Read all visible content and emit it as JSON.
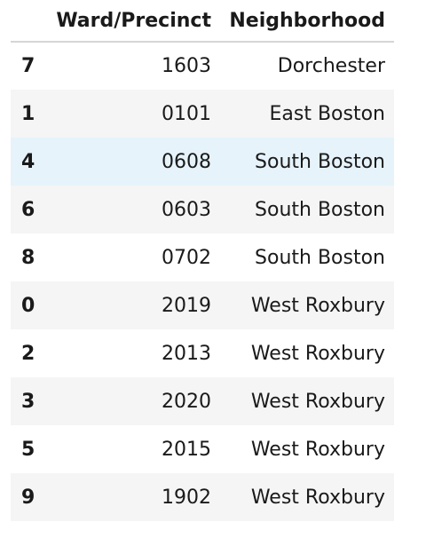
{
  "table": {
    "index_header": "",
    "columns": [
      "Ward/Precinct",
      "Neighborhood"
    ],
    "rows": [
      {
        "index": "7",
        "ward_precinct": "1603",
        "neighborhood": "Dorchester"
      },
      {
        "index": "1",
        "ward_precinct": "0101",
        "neighborhood": "East Boston"
      },
      {
        "index": "4",
        "ward_precinct": "0608",
        "neighborhood": "South Boston"
      },
      {
        "index": "6",
        "ward_precinct": "0603",
        "neighborhood": "South Boston"
      },
      {
        "index": "8",
        "ward_precinct": "0702",
        "neighborhood": "South Boston"
      },
      {
        "index": "0",
        "ward_precinct": "2019",
        "neighborhood": "West Roxbury"
      },
      {
        "index": "2",
        "ward_precinct": "2013",
        "neighborhood": "West Roxbury"
      },
      {
        "index": "3",
        "ward_precinct": "2020",
        "neighborhood": "West Roxbury"
      },
      {
        "index": "5",
        "ward_precinct": "2015",
        "neighborhood": "West Roxbury"
      },
      {
        "index": "9",
        "ward_precinct": "1902",
        "neighborhood": "West Roxbury"
      }
    ],
    "hover_row_color": "#e6f3fb",
    "stripe_color": "#f5f5f5"
  }
}
